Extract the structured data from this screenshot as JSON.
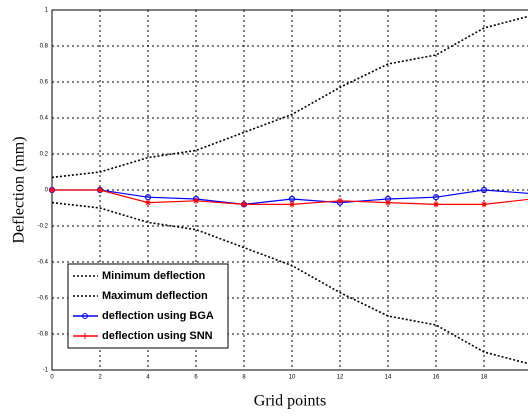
{
  "chart_data": {
    "type": "line",
    "xlabel": "Grid points",
    "ylabel": "Deflection (mm)",
    "x": [
      0,
      2,
      4,
      6,
      8,
      10,
      12,
      14,
      16,
      18,
      20
    ],
    "xlim": [
      0,
      20
    ],
    "xticks": [
      0,
      2,
      4,
      6,
      8,
      10,
      12,
      14,
      16,
      18
    ],
    "ylim": [
      -1,
      1
    ],
    "yticks": [
      -1,
      -0.8,
      -0.6,
      -0.4,
      -0.2,
      0,
      0.2,
      0.4,
      0.6,
      0.8,
      1
    ],
    "grid": true,
    "legend": "lower left",
    "series": [
      {
        "name": "Minimum deflection",
        "color": "#000000",
        "line_style": "dotted",
        "marker": "none",
        "values": [
          -0.07,
          -0.1,
          -0.18,
          -0.22,
          -0.32,
          -0.42,
          -0.57,
          -0.7,
          -0.75,
          -0.9,
          -0.97
        ]
      },
      {
        "name": "Maximum deflection",
        "color": "#000000",
        "line_style": "dotted",
        "marker": "none",
        "values": [
          0.07,
          0.1,
          0.18,
          0.22,
          0.32,
          0.42,
          0.57,
          0.7,
          0.75,
          0.9,
          0.97
        ]
      },
      {
        "name": "deflection using BGA",
        "color": "#0000ff",
        "line_style": "solid",
        "marker": "circle",
        "values": [
          0,
          0,
          -0.04,
          -0.05,
          -0.08,
          -0.05,
          -0.07,
          -0.05,
          -0.04,
          0,
          -0.02
        ]
      },
      {
        "name": "deflection using SNN",
        "color": "#ff0000",
        "line_style": "solid",
        "marker": "star",
        "values": [
          0,
          0,
          -0.07,
          -0.06,
          -0.08,
          -0.08,
          -0.06,
          -0.07,
          -0.08,
          -0.08,
          -0.05
        ]
      }
    ]
  }
}
